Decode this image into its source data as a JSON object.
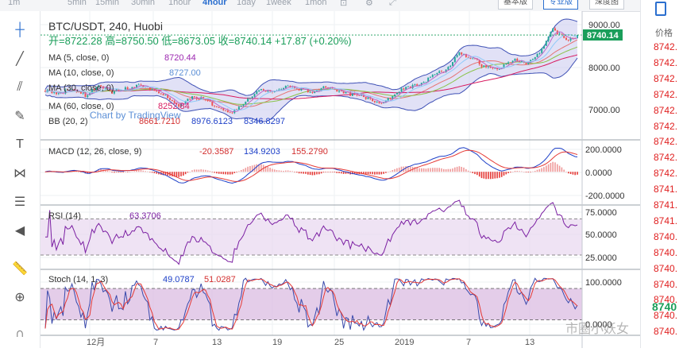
{
  "toolbar": {
    "timeframes": [
      "1m",
      "5min",
      "15min",
      "30min",
      "1hour",
      "4hour",
      "1day",
      "1week",
      "1mon"
    ],
    "active_timeframe": "4hour",
    "buttons": [
      "基本版",
      "专业版",
      "深度图"
    ],
    "active_button": "专业版"
  },
  "left_tools": [
    "crosshair-icon",
    "trendline-icon",
    "fib-icon",
    "brush-icon",
    "text-icon",
    "pattern-icon",
    "measure-lines-icon",
    "back-arrow-icon",
    "ruler-icon",
    "zoom-icon",
    "magnet-icon"
  ],
  "right_panel": {
    "header": "价格",
    "prices": [
      "8742.",
      "8742.",
      "8742.",
      "8742.",
      "8742.",
      "8742.",
      "8742.",
      "8742.",
      "8742.",
      "8741.",
      "8741.",
      "8741.",
      "8740.",
      "8740.",
      "8740.",
      "8740.",
      "8740.",
      "8740.",
      "8740."
    ],
    "last_big": "8740"
  },
  "legend": {
    "symbol": "BTC/USDT, 240, Huobi",
    "ohlc": "开=8722.28  高=8750.50  低=8673.05  收=8740.14  +17.87 (+0.20%)",
    "ma5_label": "MA (5, close, 0)",
    "ma5_val": "8720.44",
    "ma10_label": "MA (10, close, 0)",
    "ma10_val": "8727.00",
    "ma30_label": "MA (30, close, 0)",
    "ma60_label": "MA (60, close, 0)",
    "ma60_val": "8252.84",
    "bb_label": "BB (20, 2)",
    "bb_mid": "8661.7210",
    "bb_up": "8976.6123",
    "bb_low": "8346.8297",
    "attribution": "Chart by TradingView",
    "last_price_tag": "8740.14"
  },
  "macd_legend": {
    "label": "MACD (12, 26, close, 9)",
    "v1": "-20.3587",
    "v2": "134.9203",
    "v3": "155.2790"
  },
  "rsi_legend": {
    "label": "RSI (14)",
    "v": "63.3706"
  },
  "stoch_legend": {
    "label": "Stoch (14, 1, 3)",
    "v1": "49.0787",
    "v2": "51.0287"
  },
  "watermark": "市圈小妖女",
  "chart_data": [
    {
      "type": "candlestick",
      "title": "BTC/USDT, 240, Huobi",
      "y_ticks": [
        "9000.00",
        "8000.00",
        "7000.00"
      ],
      "ylim": [
        6450,
        9200
      ],
      "x_ticks": [
        "12月",
        "7",
        "13",
        "19",
        "25",
        "2019",
        "7",
        "13"
      ],
      "close_path": [
        [
          0,
          7500
        ],
        [
          6,
          7420
        ],
        [
          12,
          7560
        ],
        [
          18,
          7380
        ],
        [
          24,
          7620
        ],
        [
          30,
          7480
        ],
        [
          36,
          7550
        ],
        [
          42,
          7640
        ],
        [
          48,
          7560
        ],
        [
          54,
          7380
        ],
        [
          60,
          7150
        ],
        [
          66,
          7380
        ],
        [
          72,
          7310
        ],
        [
          78,
          7120
        ],
        [
          84,
          7030
        ],
        [
          90,
          7260
        ],
        [
          96,
          7520
        ],
        [
          102,
          7480
        ],
        [
          108,
          7600
        ],
        [
          114,
          7540
        ],
        [
          120,
          7450
        ],
        [
          126,
          7590
        ],
        [
          132,
          7500
        ],
        [
          138,
          7420
        ],
        [
          144,
          7350
        ],
        [
          150,
          7200
        ],
        [
          156,
          7380
        ],
        [
          162,
          7580
        ],
        [
          168,
          7660
        ],
        [
          174,
          7850
        ],
        [
          180,
          7930
        ],
        [
          186,
          8350
        ],
        [
          192,
          8220
        ],
        [
          198,
          8020
        ],
        [
          204,
          7980
        ],
        [
          210,
          8200
        ],
        [
          216,
          8120
        ],
        [
          222,
          8330
        ],
        [
          228,
          8880
        ],
        [
          234,
          8620
        ],
        [
          240,
          8740
        ]
      ],
      "series": [
        {
          "name": "MA (5, close, 0)",
          "values": [
            8720.44
          ]
        },
        {
          "name": "MA (10, close, 0)",
          "values": [
            8727.0
          ]
        },
        {
          "name": "MA (60, close, 0)",
          "values": [
            8252.84
          ]
        },
        {
          "name": "BB (20, 2)",
          "values": [
            8661.721,
            8976.6123,
            8346.8297
          ]
        }
      ],
      "last_price": 8740.14
    },
    {
      "type": "line",
      "title": "MACD (12, 26, close, 9)",
      "y_ticks": [
        "200.0000",
        "0.0000",
        "-200.0000"
      ],
      "ylim": [
        -240,
        230
      ],
      "values_last": [
        -20.3587,
        134.9203,
        155.279
      ]
    },
    {
      "type": "line",
      "title": "RSI (14)",
      "y_ticks": [
        "75.0000",
        "50.0000",
        "25.0000"
      ],
      "ylim": [
        15,
        82
      ],
      "band": [
        30,
        70
      ],
      "value_last": 63.3706
    },
    {
      "type": "line",
      "title": "Stoch (14, 1, 3)",
      "y_ticks": [
        "100.0000",
        "0.0000"
      ],
      "ylim": [
        -8,
        112
      ],
      "band": [
        20,
        80
      ],
      "values_last": [
        49.0787,
        51.0287
      ]
    }
  ],
  "colors": {
    "up": "#26a69a",
    "down": "#ef5350",
    "bb_fill": "#c8c8ee",
    "accent": "#2b6fcf"
  }
}
